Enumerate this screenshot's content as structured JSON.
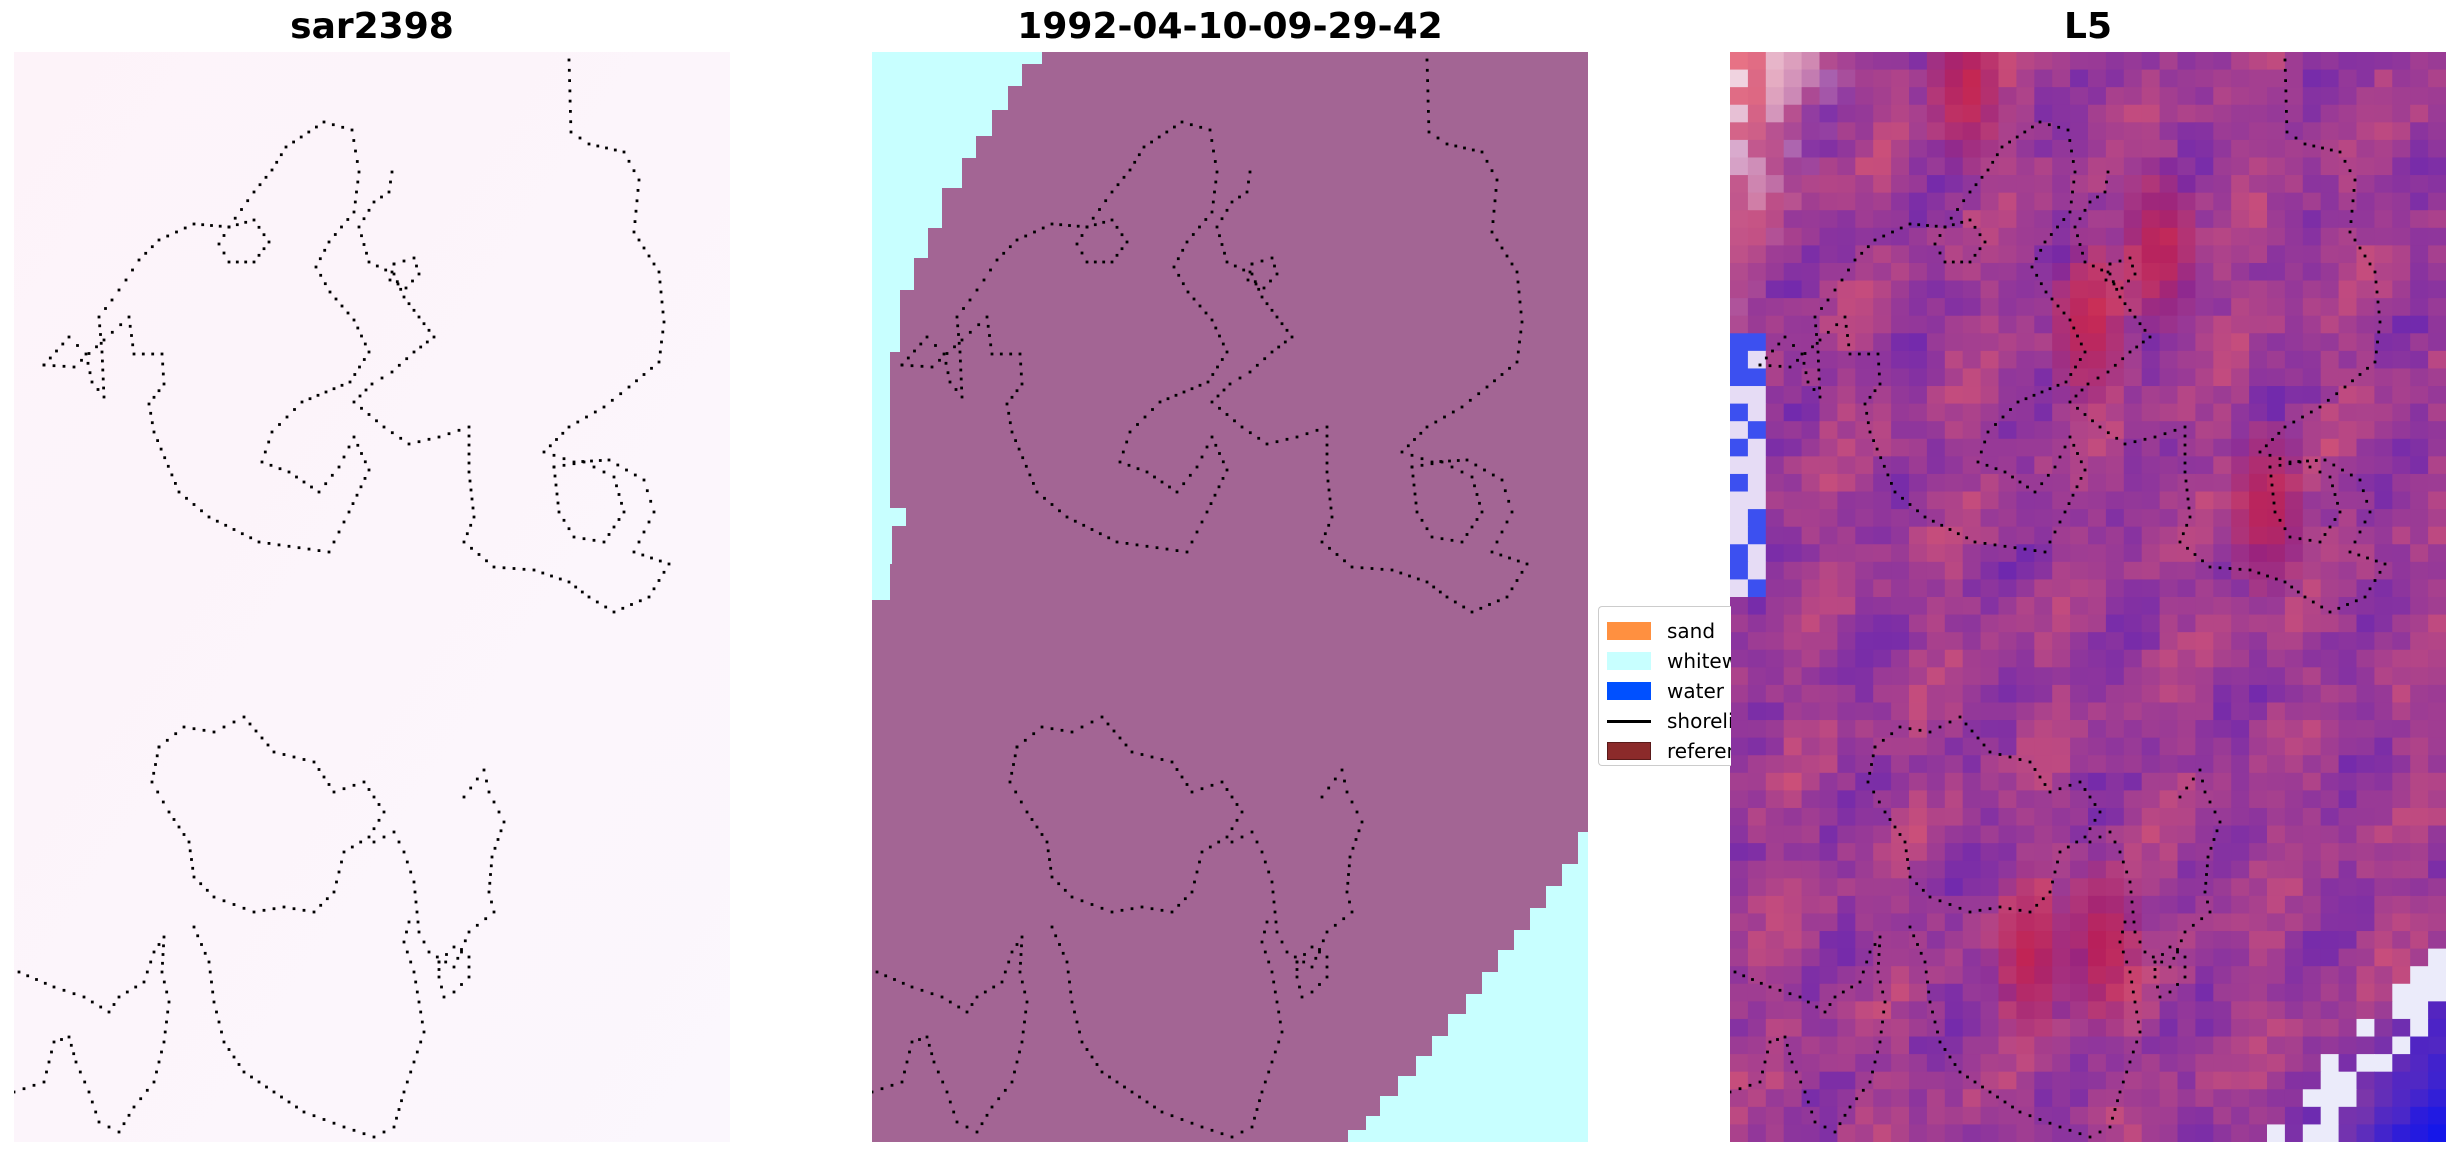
{
  "panels": [
    {
      "title": "sar2398"
    },
    {
      "title": "1992-04-10-09-29-42"
    },
    {
      "title": "L5"
    }
  ],
  "legend": {
    "items": [
      {
        "label": "sand",
        "color": "#ff9040",
        "kind": "patch"
      },
      {
        "label": "whitewater",
        "color": "#c8ffff",
        "kind": "patch"
      },
      {
        "label": "water",
        "color": "#0050ff",
        "kind": "patch"
      },
      {
        "label": "shoreline",
        "color": "#000000",
        "kind": "line"
      },
      {
        "label": "reference",
        "color": "#8b2a2a",
        "kind": "patch"
      }
    ]
  },
  "colors": {
    "sar_background": "#fdf6fb",
    "classified_land": "#a36594",
    "whitewater": "#c8ffff",
    "l5_base": "#9a3c98"
  }
}
